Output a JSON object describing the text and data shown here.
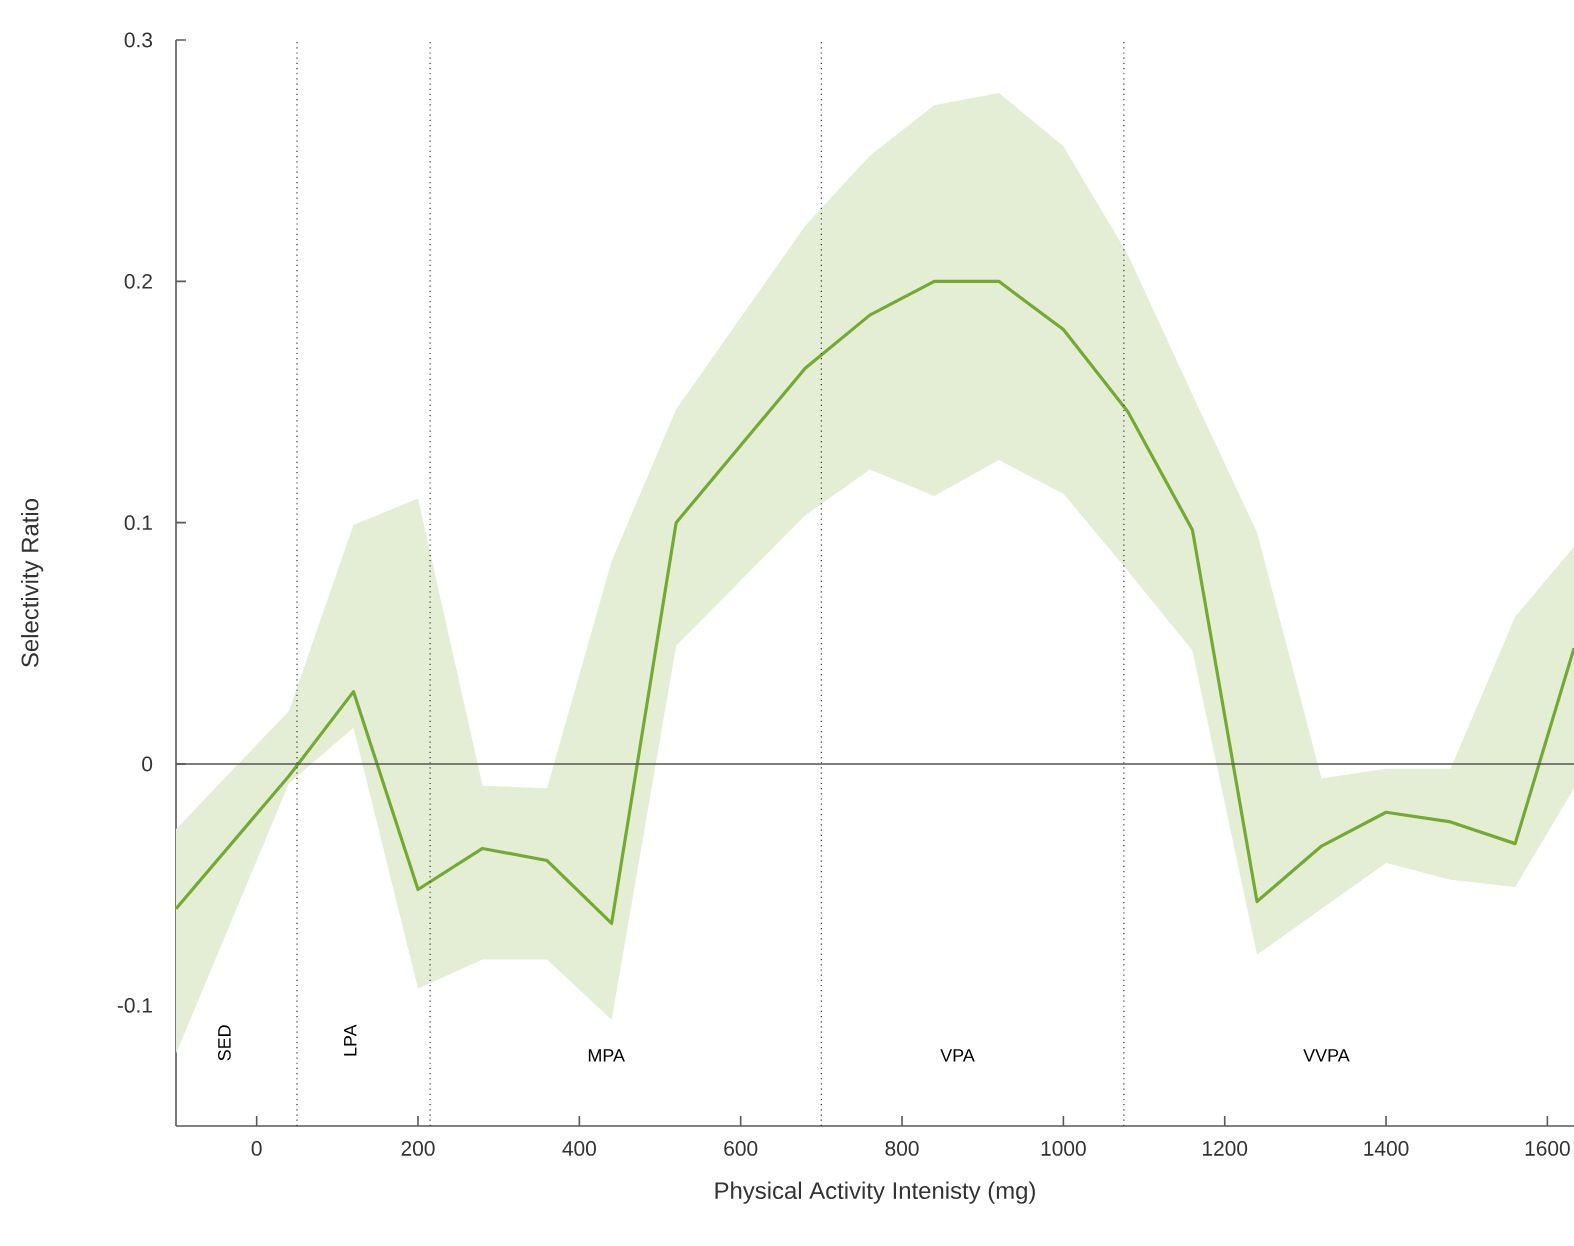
{
  "chart_data": {
    "type": "line",
    "xlabel": "Physical Activity Intenisty (mg)",
    "ylabel": "Selectivity Ratio",
    "xlim": [
      -100,
      1633
    ],
    "ylim": [
      -0.15,
      0.3
    ],
    "xticks": [
      0,
      200,
      400,
      600,
      800,
      1000,
      1200,
      1400,
      1600
    ],
    "yticks": [
      -0.1,
      0,
      0.1,
      0.2,
      0.3
    ],
    "grid": false,
    "marker": "none",
    "line_style": "solid",
    "series": [
      {
        "color": "#72ab2e",
        "x": [
          -100,
          40,
          120,
          200,
          280,
          360,
          440,
          520,
          680,
          760,
          840,
          920,
          1000,
          1080,
          1160,
          1240,
          1320,
          1400,
          1480,
          1560,
          1633
        ],
        "values": [
          -0.06,
          -0.005,
          0.03,
          -0.052,
          -0.035,
          -0.04,
          -0.066,
          0.1,
          0.164,
          0.186,
          0.2,
          0.2,
          0.18,
          0.146,
          0.097,
          -0.057,
          -0.034,
          -0.02,
          -0.024,
          -0.033,
          0.048
        ],
        "upper": [
          -0.027,
          0.022,
          0.099,
          0.11,
          -0.009,
          -0.01,
          0.084,
          0.147,
          0.223,
          0.252,
          0.273,
          0.278,
          0.256,
          0.211,
          0.153,
          0.096,
          -0.006,
          -0.002,
          -0.002,
          0.061,
          0.09
        ],
        "lower": [
          -0.12,
          -0.008,
          0.015,
          -0.093,
          -0.081,
          -0.081,
          -0.106,
          0.049,
          0.103,
          0.122,
          0.111,
          0.126,
          0.112,
          0.08,
          0.047,
          -0.079,
          -0.06,
          -0.041,
          -0.048,
          -0.051,
          -0.01
        ]
      }
    ],
    "ref_lines": [
      {
        "axis": "y",
        "value": 0,
        "color": "#555555",
        "line_style": "solid"
      },
      {
        "axis": "x",
        "value": 50,
        "color": "#333333",
        "line_style": "dotted"
      },
      {
        "axis": "x",
        "value": 215,
        "color": "#333333",
        "line_style": "dotted"
      },
      {
        "axis": "x",
        "value": 700,
        "color": "#333333",
        "line_style": "dotted"
      },
      {
        "axis": "x",
        "value": 1075,
        "color": "#333333",
        "line_style": "dotted"
      }
    ],
    "annotations": [
      "SED",
      "LPA",
      "MPA",
      "VPA",
      "VVPA"
    ]
  }
}
